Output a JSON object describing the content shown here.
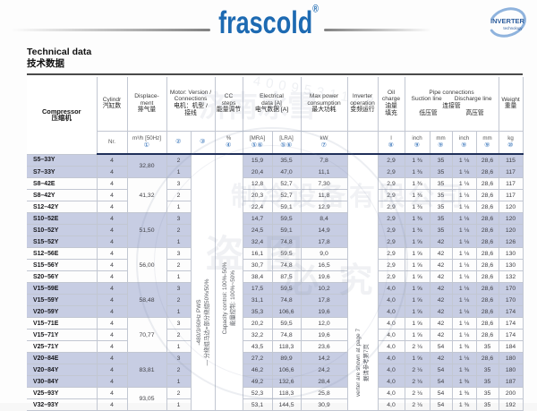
{
  "brand": {
    "logo": "frascold",
    "registered": "®",
    "badge_title": "INVERTER",
    "badge_sub": "technology"
  },
  "title": {
    "en": "Technical data",
    "zh": "技术数据"
  },
  "header": {
    "compressor": {
      "en": "Compressor",
      "zh": "压缩机"
    },
    "cylinder": {
      "en": "Cylindr",
      "zh": "汽缸数",
      "unit": "Nr."
    },
    "displacement": {
      "en1": "Displace-",
      "en2": "ment",
      "zh": "排气量",
      "unit": "m³/h [50Hz]",
      "mark": "①"
    },
    "motor": {
      "en1": "Motor: Version /",
      "en2": "Connections",
      "zh1": "电机：机型 /",
      "zh2": "接线",
      "mark_version": "②",
      "mark_connections": "③"
    },
    "cc": {
      "en1": "CC",
      "en2": "steps",
      "zh": "能量调节",
      "unit": "%",
      "mark": "④"
    },
    "electrical": {
      "en1": "Electrical",
      "en2": "data [A]",
      "zh": "电气数据 [A]",
      "mra": "[MRA]",
      "mra_marks": "⑤⑥",
      "lra": "[LRA]",
      "lra_marks": "⑤⑥"
    },
    "power": {
      "en1": "Max power",
      "en2": "consumption",
      "zh": "最大功耗",
      "unit": "kW",
      "mark": "⑦"
    },
    "inverter": {
      "en1": "Inverter",
      "en2": "operation",
      "zh": "变频运行"
    },
    "oil": {
      "en1": "Oil",
      "en2": "charge",
      "zh1": "油量",
      "zh2": "填充",
      "unit": "l",
      "mark": "⑧"
    },
    "pipes": {
      "en": "Pipe connections",
      "suction_en": "Suction line",
      "discharge_en": "Discharge line",
      "zh": "连接管",
      "suction_zh": "低压管",
      "discharge_zh": "高压管",
      "unit_inch": "inch",
      "unit_mm": "mm",
      "mark": "⑨"
    },
    "weight": {
      "en": "Weight",
      "zh": "重量",
      "unit": "kg",
      "mark": "⑩"
    }
  },
  "notes": {
    "connections_en": "-480/3/60Hz  PWS",
    "connections_zh": "— 分绕组马达=部分绕组50%/50%",
    "cc_en": "Capacity control: 100%-50%",
    "cc_zh": "能量控制: 100%~50%",
    "inverter_en": "verter are shown at page 7",
    "inverter_zh": "据请参考第7页"
  },
  "rows": [
    {
      "model": "S5–33Y",
      "cyl": "4",
      "disp": "32,80",
      "disp_span": 2,
      "ver": "2",
      "mra": "15,9",
      "lra": "35,5",
      "kw": "7,8",
      "oil": "2,9",
      "si": "1 ⅜",
      "sm": "35",
      "di": "1 ⅛",
      "dm": "28,6",
      "kg": "115",
      "shaded": true
    },
    {
      "model": "S7–33Y",
      "cyl": "4",
      "ver": "1",
      "mra": "20,4",
      "lra": "47,0",
      "kw": "11,1",
      "oil": "2,9",
      "si": "1 ⅜",
      "sm": "35",
      "di": "1 ⅛",
      "dm": "28,6",
      "kg": "117",
      "shaded": true
    },
    {
      "model": "S8–42E",
      "cyl": "4",
      "disp": "41,32",
      "disp_span": 3,
      "ver": "3",
      "mra": "12,8",
      "lra": "52,7",
      "kw": "7,30",
      "oil": "2,9",
      "si": "1 ⅜",
      "sm": "35",
      "di": "1 ⅛",
      "dm": "28,6",
      "kg": "117",
      "shaded": false
    },
    {
      "model": "S8–42Y",
      "cyl": "4",
      "ver": "2",
      "mra": "20,3",
      "lra": "52,7",
      "kw": "11,8",
      "oil": "2,9",
      "si": "1 ⅜",
      "sm": "35",
      "di": "1 ⅛",
      "dm": "28,6",
      "kg": "117",
      "shaded": false
    },
    {
      "model": "S12–42Y",
      "cyl": "4",
      "ver": "1",
      "mra": "22,4",
      "lra": "59,1",
      "kw": "12,9",
      "oil": "2,9",
      "si": "1 ⅜",
      "sm": "35",
      "di": "1 ⅛",
      "dm": "28,6",
      "kg": "120",
      "shaded": false
    },
    {
      "model": "S10–52E",
      "cyl": "4",
      "disp": "51,50",
      "disp_span": 3,
      "ver": "3",
      "mra": "14,7",
      "lra": "59,5",
      "kw": "8,4",
      "oil": "2,9",
      "si": "1 ⅜",
      "sm": "35",
      "di": "1 ⅛",
      "dm": "28,6",
      "kg": "120",
      "shaded": true
    },
    {
      "model": "S10–52Y",
      "cyl": "4",
      "ver": "2",
      "mra": "24,5",
      "lra": "59,1",
      "kw": "14,9",
      "oil": "2,9",
      "si": "1 ⅜",
      "sm": "35",
      "di": "1 ⅛",
      "dm": "28,6",
      "kg": "120",
      "shaded": true
    },
    {
      "model": "S15–52Y",
      "cyl": "4",
      "ver": "1",
      "mra": "32,4",
      "lra": "74,8",
      "kw": "17,8",
      "oil": "2,9",
      "si": "1 ⅝",
      "sm": "42",
      "di": "1 ⅛",
      "dm": "28,6",
      "kg": "126",
      "shaded": true
    },
    {
      "model": "S12–56E",
      "cyl": "4",
      "disp": "56,00",
      "disp_span": 3,
      "ver": "3",
      "mra": "16,1",
      "lra": "59,5",
      "kw": "9,0",
      "oil": "2,9",
      "si": "1 ⅝",
      "sm": "42",
      "di": "1 ⅛",
      "dm": "28,6",
      "kg": "130",
      "shaded": false
    },
    {
      "model": "S15–56Y",
      "cyl": "4",
      "ver": "2",
      "mra": "30,7",
      "lra": "74,8",
      "kw": "16,5",
      "oil": "2,9",
      "si": "1 ⅝",
      "sm": "42",
      "di": "1 ⅛",
      "dm": "28,6",
      "kg": "130",
      "shaded": false
    },
    {
      "model": "S20–56Y",
      "cyl": "4",
      "ver": "1",
      "mra": "38,4",
      "lra": "87,5",
      "kw": "19,6",
      "oil": "2,9",
      "si": "1 ⅝",
      "sm": "42",
      "di": "1 ⅛",
      "dm": "28,6",
      "kg": "132",
      "shaded": false
    },
    {
      "model": "V15–59E",
      "cyl": "4",
      "disp": "58,48",
      "disp_span": 3,
      "ver": "3",
      "mra": "17,5",
      "lra": "59,5",
      "kw": "10,2",
      "oil": "4,0",
      "si": "1 ⅝",
      "sm": "42",
      "di": "1 ⅛",
      "dm": "28,6",
      "kg": "170",
      "shaded": true
    },
    {
      "model": "V15–59Y",
      "cyl": "4",
      "ver": "2",
      "mra": "31,1",
      "lra": "74,8",
      "kw": "17,8",
      "oil": "4,0",
      "si": "1 ⅝",
      "sm": "42",
      "di": "1 ⅛",
      "dm": "28,6",
      "kg": "170",
      "shaded": true
    },
    {
      "model": "V20–59Y",
      "cyl": "4",
      "ver": "1",
      "mra": "35,3",
      "lra": "106,6",
      "kw": "19,6",
      "oil": "4,0",
      "si": "1 ⅝",
      "sm": "42",
      "di": "1 ⅛",
      "dm": "28,6",
      "kg": "174",
      "shaded": true
    },
    {
      "model": "V15–71E",
      "cyl": "4",
      "disp": "70,77",
      "disp_span": 3,
      "ver": "3",
      "mra": "20,2",
      "lra": "59,5",
      "kw": "12,0",
      "oil": "4,0",
      "si": "1 ⅝",
      "sm": "42",
      "di": "1 ⅛",
      "dm": "28,6",
      "kg": "174",
      "shaded": false
    },
    {
      "model": "V15–71Y",
      "cyl": "4",
      "ver": "2",
      "mra": "32,2",
      "lra": "74,8",
      "kw": "19,6",
      "oil": "4,0",
      "si": "1 ⅝",
      "sm": "42",
      "di": "1 ⅛",
      "dm": "28,6",
      "kg": "174",
      "shaded": false
    },
    {
      "model": "V25–71Y",
      "cyl": "4",
      "ver": "1",
      "mra": "43,5",
      "lra": "118,3",
      "kw": "23,6",
      "oil": "4,0",
      "si": "2 ⅛",
      "sm": "54",
      "di": "1 ⅜",
      "dm": "35",
      "kg": "184",
      "shaded": false
    },
    {
      "model": "V20–84E",
      "cyl": "4",
      "disp": "83,81",
      "disp_span": 3,
      "ver": "3",
      "mra": "27,2",
      "lra": "89,9",
      "kw": "14,2",
      "oil": "4,0",
      "si": "1 ⅝",
      "sm": "42",
      "di": "1 ⅛",
      "dm": "28,6",
      "kg": "180",
      "shaded": true
    },
    {
      "model": "V20–84Y",
      "cyl": "4",
      "ver": "2",
      "mra": "46,2",
      "lra": "106,6",
      "kw": "24,2",
      "oil": "4,0",
      "si": "2 ⅛",
      "sm": "54",
      "di": "1 ⅜",
      "dm": "35",
      "kg": "180",
      "shaded": true
    },
    {
      "model": "V30–84Y",
      "cyl": "4",
      "ver": "1",
      "mra": "49,2",
      "lra": "132,6",
      "kw": "28,4",
      "oil": "4,0",
      "si": "2 ⅛",
      "sm": "54",
      "di": "1 ⅜",
      "dm": "35",
      "kg": "187",
      "shaded": true
    },
    {
      "model": "V25–93Y",
      "cyl": "4",
      "disp": "93,05",
      "disp_span": 2,
      "ver": "2",
      "mra": "52,3",
      "lra": "118,3",
      "kw": "25,8",
      "oil": "4,0",
      "si": "2 ⅛",
      "sm": "54",
      "di": "1 ⅜",
      "dm": "35",
      "kg": "200",
      "shaded": false
    },
    {
      "model": "V32–93Y",
      "cyl": "4",
      "ver": "1",
      "mra": "53,1",
      "lra": "144,5",
      "kw": "30,9",
      "oil": "4,0",
      "si": "2 ⅛",
      "sm": "54",
      "di": "1 ⅜",
      "dm": "35",
      "kg": "192",
      "shaded": false
    }
  ],
  "watermark": {
    "company1": "济南冰雪",
    "company2": "制冷设备有限公司",
    "stamp1": "盗 图",
    "stamp2": "必 究",
    "phone": "4009531128"
  }
}
